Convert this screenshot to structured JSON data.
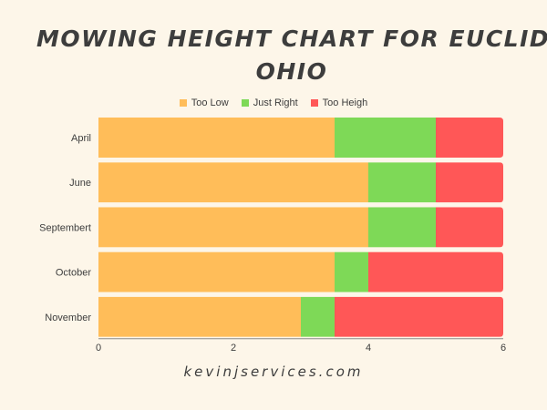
{
  "title_lines": [
    "MOWING HEIGHT CHART FOR EUCLID",
    "OHIO"
  ],
  "footer": "kevinjservices.com",
  "legend": [
    {
      "name": "Too Low",
      "color": "#ffbd59"
    },
    {
      "name": "Just Right",
      "color": "#7ed957"
    },
    {
      "name": "Too Heigh",
      "color": "#ff5757"
    }
  ],
  "chart_data": {
    "type": "bar",
    "orientation": "horizontal",
    "stacked": true,
    "title": "MOWING HEIGHT CHART FOR EUCLID OHIO",
    "categories": [
      "April",
      "June",
      "Septembert",
      "October",
      "November"
    ],
    "series": [
      {
        "name": "Too Low",
        "color": "#ffbd59",
        "values": [
          3.5,
          4,
          4,
          3.5,
          3
        ]
      },
      {
        "name": "Just Right",
        "color": "#7ed957",
        "values": [
          1.5,
          1,
          1,
          0.5,
          0.5
        ]
      },
      {
        "name": "Too Heigh",
        "color": "#ff5757",
        "values": [
          1,
          1,
          1,
          2,
          2.5
        ]
      }
    ],
    "xlim": [
      0,
      6
    ],
    "xticks": [
      0,
      2,
      4,
      6
    ],
    "grid": false,
    "legend_position": "top-center"
  }
}
